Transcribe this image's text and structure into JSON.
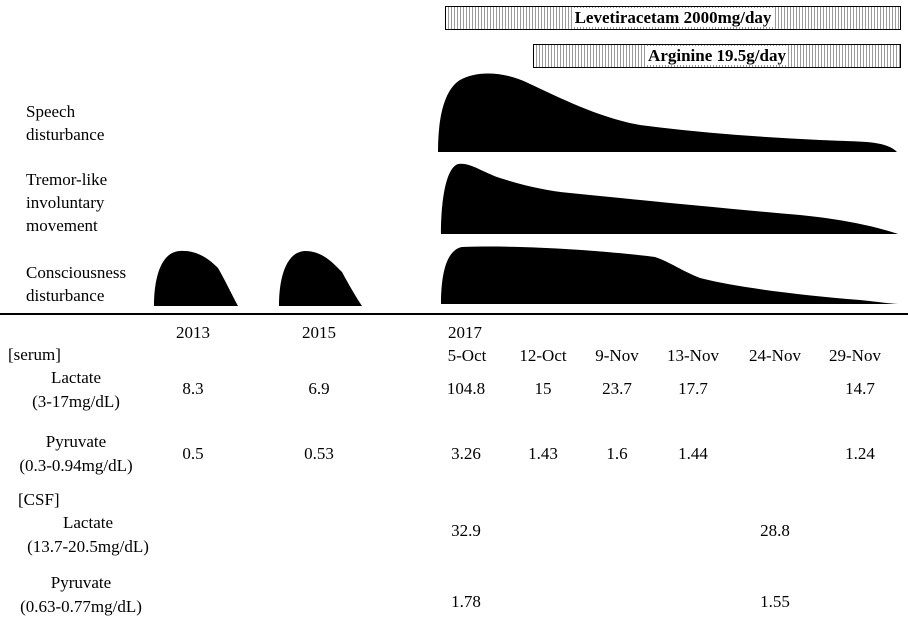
{
  "drugs": [
    {
      "label": "Levetiracetam 2000mg/day"
    },
    {
      "label": "Arginine 19.5g/day"
    }
  ],
  "symptoms": [
    {
      "lines": [
        "Speech",
        "disturbance"
      ]
    },
    {
      "lines": [
        "Tremor-like",
        "involuntary",
        "movement"
      ]
    },
    {
      "lines": [
        "Consciousness",
        "disturbance"
      ]
    }
  ],
  "columns": {
    "years": [
      "2013",
      "2015",
      "2017"
    ],
    "dates": [
      "5-Oct",
      "12-Oct",
      "9-Nov",
      "13-Nov",
      "24-Nov",
      "29-Nov"
    ]
  },
  "sections": {
    "serum": "[serum]",
    "csf": "[CSF]"
  },
  "rows": {
    "serum_lactate": {
      "name": "Lactate",
      "range": "(3-17mg/dL)",
      "values": [
        "8.3",
        "6.9",
        "104.8",
        "15",
        "23.7",
        "17.7",
        "",
        "14.7"
      ]
    },
    "serum_pyruvate": {
      "name": "Pyruvate",
      "range": "(0.3-0.94mg/dL)",
      "values": [
        "0.5",
        "0.53",
        "3.26",
        "1.43",
        "1.6",
        "1.44",
        "",
        "1.24"
      ]
    },
    "csf_lactate": {
      "name": "Lactate",
      "range": "(13.7-20.5mg/dL)",
      "values": [
        "",
        "",
        "32.9",
        "",
        "",
        "",
        "28.8",
        ""
      ]
    },
    "csf_pyruvate": {
      "name": "Pyruvate",
      "range": "(0.63-0.77mg/dL)",
      "values": [
        "",
        "",
        "1.78",
        "",
        "",
        "",
        "1.55",
        ""
      ]
    }
  }
}
